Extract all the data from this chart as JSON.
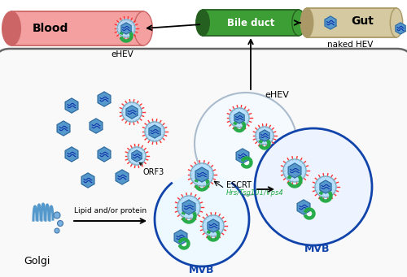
{
  "bg_color": "#ffffff",
  "cell_fill": "#f9f9f9",
  "cell_edge": "#666666",
  "blood_color": "#f4a0a0",
  "blood_edge": "#cc6666",
  "blood_dark": "#e07070",
  "bile_color": "#3d9e35",
  "bile_edge": "#256020",
  "gut_color": "#d4c9a0",
  "gut_edge": "#aa9966",
  "mvb_fill": "#eef4ff",
  "mvb_edge": "#1144aa",
  "exo_fill": "#f5faff",
  "exo_edge": "#aabbcc",
  "virus_hex": "#5599cc",
  "virus_hex_edge": "#336699",
  "virus_env": "#aaddff",
  "spike_color": "#ff3333",
  "wavy_color": "#1133aa",
  "orf3_color": "#22aa44",
  "figsize": [
    5.0,
    3.41
  ],
  "dpi": 100,
  "labels": {
    "blood": "Blood",
    "ehev_blood": "eHEV",
    "bile_duct": "Bile duct",
    "gut": "Gut",
    "naked_hev": "naked HEV",
    "ehev_top": "eHEV",
    "escrt": "ESCRT",
    "hrs_tsg": "Hrs/Tsg101/Vps4",
    "mvb1": "MVB",
    "mvb2": "MVB",
    "golgi": "Golgi",
    "orf3": "ORF3",
    "lipid": "Lipid and/or protein"
  }
}
